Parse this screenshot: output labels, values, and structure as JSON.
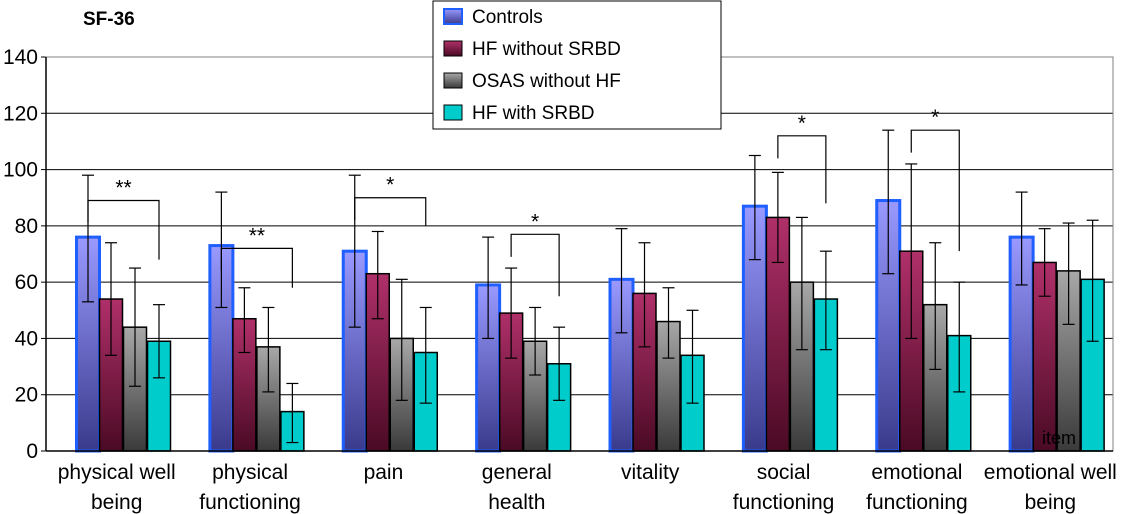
{
  "chart_data": {
    "type": "bar",
    "title": "SF-36",
    "xlabel": "item",
    "ylabel": "",
    "ylim": [
      0,
      140
    ],
    "yticks": [
      0,
      20,
      40,
      60,
      80,
      100,
      120,
      140
    ],
    "grid": true,
    "legend_position": "top-center",
    "categories": [
      [
        "physical well",
        "being"
      ],
      [
        "physical",
        "functioning"
      ],
      [
        "pain"
      ],
      [
        "general",
        "health"
      ],
      [
        "vitality"
      ],
      [
        "social",
        "functioning"
      ],
      [
        "emotional",
        "functioning"
      ],
      [
        "emotional well",
        "being"
      ]
    ],
    "series": [
      {
        "name": "Controls",
        "color": "#7f7fff",
        "values": [
          76,
          73,
          71,
          59,
          61,
          87,
          89,
          76
        ],
        "error_upper": [
          98,
          92,
          98,
          76,
          79,
          105,
          114,
          92
        ],
        "error_lower": [
          53,
          51,
          44,
          40,
          42,
          68,
          63,
          59
        ]
      },
      {
        "name": "HF without SRBD",
        "color": "#8b1a4a",
        "values": [
          54,
          47,
          63,
          49,
          56,
          83,
          71,
          67
        ],
        "error_upper": [
          74,
          58,
          78,
          65,
          74,
          99,
          102,
          79
        ],
        "error_lower": [
          34,
          35,
          47,
          33,
          37,
          67,
          40,
          55
        ]
      },
      {
        "name": "OSAS without HF",
        "color": "#808080",
        "values": [
          44,
          37,
          40,
          39,
          46,
          60,
          52,
          64
        ],
        "error_upper": [
          65,
          51,
          61,
          51,
          58,
          83,
          74,
          81
        ],
        "error_lower": [
          23,
          21,
          18,
          27,
          33,
          36,
          29,
          45
        ]
      },
      {
        "name": "HF with SRBD",
        "color": "#00cccc",
        "values": [
          39,
          14,
          35,
          31,
          34,
          54,
          41,
          61
        ],
        "error_upper": [
          52,
          24,
          51,
          44,
          50,
          71,
          60,
          82
        ],
        "error_lower": [
          26,
          3,
          17,
          18,
          17,
          36,
          21,
          39
        ]
      }
    ],
    "significance": [
      {
        "category": 0,
        "from_series": 0,
        "to_series": 3,
        "label": "**",
        "y": 89,
        "end_y": 68
      },
      {
        "category": 1,
        "from_series": 0,
        "to_series": 3,
        "label": "**",
        "y": 72,
        "end_y": 58
      },
      {
        "category": 2,
        "from_series": 0,
        "to_series": 3,
        "label": "*",
        "y": 90,
        "end_y": 80
      },
      {
        "category": 3,
        "from_series": 1,
        "to_series": 3,
        "label": "*",
        "y": 77,
        "end_y": 55
      },
      {
        "category": 5,
        "from_series": 1,
        "to_series": 3,
        "label": "*",
        "y": 112,
        "end_y": 88
      },
      {
        "category": 6,
        "from_series": 1,
        "to_series": 3,
        "label": "*",
        "y": 114,
        "end_y": 71
      }
    ]
  }
}
